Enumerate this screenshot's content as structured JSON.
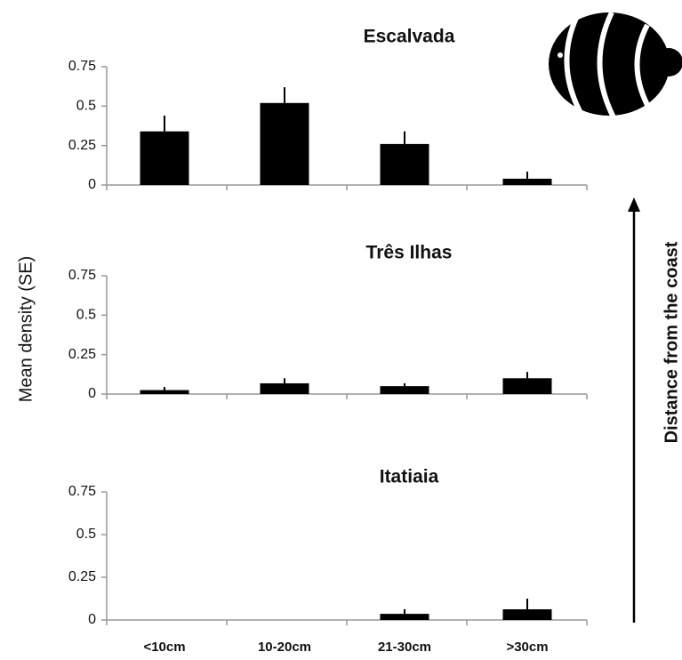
{
  "ylabel": "Mean density (SE)",
  "annotation": "Distance from the coast",
  "chart_data": [
    {
      "type": "bar",
      "title": "Escalvada",
      "categories": [
        null,
        null,
        null,
        null
      ],
      "values": [
        0.34,
        0.52,
        0.26,
        0.04
      ],
      "errors": [
        0.1,
        0.1,
        0.08,
        0.045
      ],
      "color": "#000000",
      "ylim": [
        0,
        0.75
      ],
      "yticks": [
        0,
        0.25,
        0.5,
        0.75
      ]
    },
    {
      "type": "bar",
      "title": "Três Ilhas",
      "categories": [
        null,
        null,
        null,
        null
      ],
      "values": [
        0.025,
        0.068,
        0.05,
        0.1
      ],
      "errors": [
        0.02,
        0.032,
        0.018,
        0.04
      ],
      "color": "#000000",
      "ylim": [
        0,
        0.75
      ],
      "yticks": [
        0,
        0.25,
        0.5,
        0.75
      ]
    },
    {
      "type": "bar",
      "title": "Itatiaia",
      "categories": [
        "<10cm",
        "10-20cm",
        "21-30cm",
        ">30cm"
      ],
      "values": [
        0,
        0,
        0.036,
        0.0625
      ],
      "errors": [
        0,
        0,
        0.027,
        0.0625
      ],
      "color": "#000000",
      "ylim": [
        0,
        0.75
      ],
      "yticks": [
        0,
        0.25,
        0.5,
        0.75
      ]
    }
  ]
}
